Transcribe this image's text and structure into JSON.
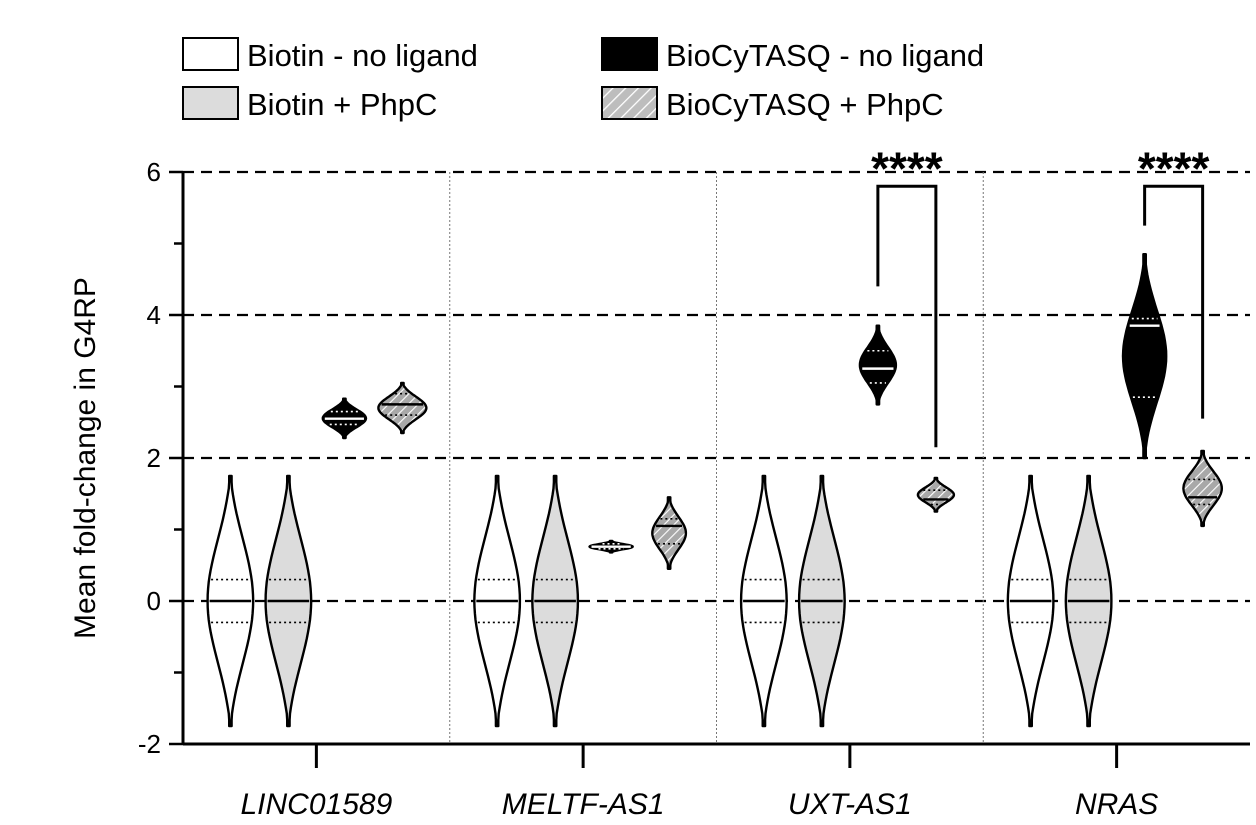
{
  "chart_data": {
    "type": "violin",
    "title": "",
    "xlabel": "",
    "ylabel": "Mean fold-change in G4RP",
    "ylim": [
      -2,
      6
    ],
    "yticks": [
      -2,
      0,
      2,
      4,
      6
    ],
    "ytick_labels": [
      "-2",
      "0",
      "2",
      "4",
      "6"
    ],
    "dashed_gridlines": [
      0,
      2,
      4,
      6
    ],
    "categories": [
      "LINC01589",
      "MELTF-AS1",
      "UXT-AS1",
      "NRAS"
    ],
    "legend": [
      {
        "label": "Biotin - no ligand",
        "style": "white"
      },
      {
        "label": "BioCyTASQ - no ligand",
        "style": "black"
      },
      {
        "label": "Biotin + PhpC",
        "style": "gray"
      },
      {
        "label": "BioCyTASQ + PhpC",
        "style": "hatched"
      }
    ],
    "series": [
      {
        "name": "Biotin - no ligand",
        "style": "white",
        "violins": [
          {
            "median": 0.0,
            "q1": -0.3,
            "q3": 0.3,
            "min": -1.75,
            "max": 1.75,
            "width": 0.95
          },
          {
            "median": 0.0,
            "q1": -0.3,
            "q3": 0.3,
            "min": -1.75,
            "max": 1.75,
            "width": 0.95
          },
          {
            "median": 0.0,
            "q1": -0.3,
            "q3": 0.3,
            "min": -1.75,
            "max": 1.75,
            "width": 0.95
          },
          {
            "median": 0.0,
            "q1": -0.3,
            "q3": 0.3,
            "min": -1.75,
            "max": 1.75,
            "width": 0.95
          }
        ]
      },
      {
        "name": "Biotin + PhpC",
        "style": "gray",
        "violins": [
          {
            "median": 0.0,
            "q1": -0.3,
            "q3": 0.3,
            "min": -1.75,
            "max": 1.75,
            "width": 0.95
          },
          {
            "median": 0.0,
            "q1": -0.3,
            "q3": 0.3,
            "min": -1.75,
            "max": 1.75,
            "width": 0.95
          },
          {
            "median": 0.0,
            "q1": -0.3,
            "q3": 0.3,
            "min": -1.75,
            "max": 1.75,
            "width": 0.95
          },
          {
            "median": 0.0,
            "q1": -0.3,
            "q3": 0.3,
            "min": -1.75,
            "max": 1.75,
            "width": 0.95
          }
        ]
      },
      {
        "name": "BioCyTASQ - no ligand",
        "style": "black",
        "violins": [
          {
            "median": 2.55,
            "q1": 2.47,
            "q3": 2.65,
            "min": 2.28,
            "max": 2.83,
            "width": 0.9
          },
          {
            "median": 0.76,
            "q1": 0.73,
            "q3": 0.8,
            "min": 0.68,
            "max": 0.84,
            "width": 0.9
          },
          {
            "median": 3.25,
            "q1": 3.05,
            "q3": 3.5,
            "min": 2.75,
            "max": 3.85,
            "width": 0.75
          },
          {
            "median": 3.85,
            "q1": 2.85,
            "q3": 3.95,
            "min": 2.0,
            "max": 4.85,
            "width": 0.9
          }
        ]
      },
      {
        "name": "BioCyTASQ + PhpC",
        "style": "hatched",
        "violins": [
          {
            "median": 2.75,
            "q1": 2.6,
            "q3": 2.9,
            "min": 2.35,
            "max": 3.05,
            "width": 1.0
          },
          {
            "median": 1.05,
            "q1": 0.8,
            "q3": 1.15,
            "min": 0.45,
            "max": 1.45,
            "width": 0.7
          },
          {
            "median": 1.42,
            "q1": 1.35,
            "q3": 1.55,
            "min": 1.25,
            "max": 1.72,
            "width": 0.75
          },
          {
            "median": 1.45,
            "q1": 1.35,
            "q3": 1.7,
            "min": 1.05,
            "max": 2.1,
            "width": 0.8
          }
        ]
      }
    ],
    "significance": [
      {
        "category": "UXT-AS1",
        "label": "****",
        "bracket_top": 5.8,
        "left_end": 4.4,
        "right_end": 2.15
      },
      {
        "category": "NRAS",
        "label": "****",
        "bracket_top": 5.8,
        "left_end": 5.25,
        "right_end": 2.55
      }
    ]
  }
}
